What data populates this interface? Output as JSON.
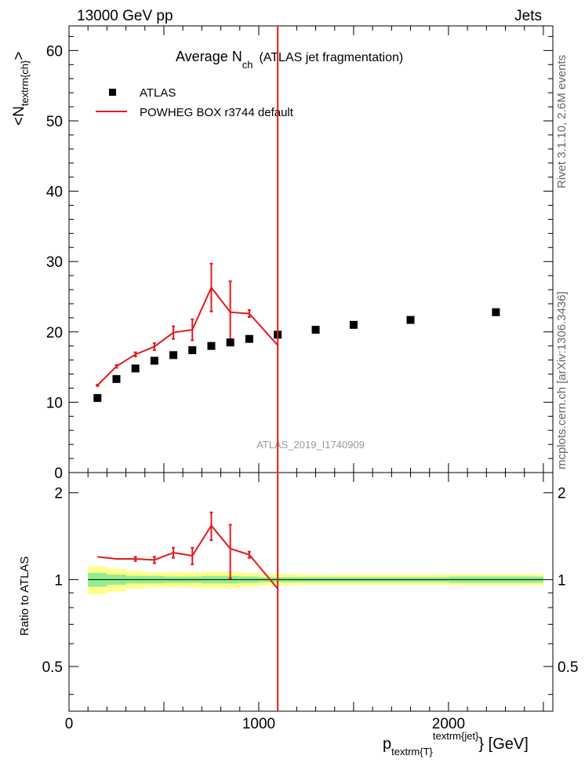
{
  "header": {
    "left": "13000 GeV pp",
    "right": "Jets"
  },
  "sidebar": {
    "rivet": "Rivet 3.1.10,  2.6M events",
    "mcplots": "mcplots.cern.ch [arXiv:1306.3436]"
  },
  "watermark": "ATLAS_2019_I1740909",
  "chart_data": {
    "type": "scatter",
    "title": {
      "main": "Average N",
      "sub": "ch",
      "rest": "(ATLAS jet fragmentation)"
    },
    "ylabel": {
      "pre": "<N",
      "sub": "textrm{ch}",
      "post": ">"
    },
    "xlabel": {
      "p": "p",
      "sub": "textrm{T}",
      "sup": "textrm{jet}",
      "unit": "} [GeV]"
    },
    "ratio_ylabel": "Ratio to ATLAS",
    "xlim": [
      0,
      2550
    ],
    "ylim": [
      0,
      63.5
    ],
    "ratio_ylim": [
      0.35,
      2.35
    ],
    "xticks": [
      "0",
      "1000",
      "2000"
    ],
    "xtick_values": [
      0,
      1000,
      2000
    ],
    "yticks": [
      "0",
      "10",
      "20",
      "30",
      "40",
      "50",
      "60"
    ],
    "ytick_values": [
      0,
      10,
      20,
      30,
      40,
      50,
      60
    ],
    "ratio_ticks": [
      "0.5",
      "1",
      "2"
    ],
    "ratio_tick_values": [
      0.5,
      1,
      2
    ],
    "vline_x": 1100,
    "legend": [
      "ATLAS",
      "POWHEG BOX r3744 default"
    ],
    "atlas": {
      "x": [
        150,
        250,
        350,
        450,
        550,
        650,
        750,
        850,
        950,
        1100,
        1300,
        1500,
        1800,
        2250
      ],
      "y": [
        10.6,
        13.3,
        14.8,
        15.9,
        16.7,
        17.4,
        18.0,
        18.5,
        19.0,
        19.6,
        20.3,
        21.0,
        21.7,
        22.8
      ]
    },
    "powheg": {
      "x": [
        150,
        250,
        350,
        450,
        550,
        650,
        750,
        850,
        950,
        1100
      ],
      "y": [
        12.4,
        15.1,
        16.8,
        17.9,
        19.9,
        20.3,
        26.3,
        22.8,
        22.6,
        18.1
      ],
      "err": [
        0.1,
        0.2,
        0.3,
        0.5,
        0.9,
        1.5,
        3.4,
        4.4,
        0.5,
        0.0
      ]
    },
    "ratio": {
      "x": [
        150,
        250,
        350,
        450,
        550,
        650,
        750,
        850,
        950,
        1100
      ],
      "y": [
        1.2,
        1.18,
        1.18,
        1.17,
        1.24,
        1.21,
        1.54,
        1.28,
        1.22,
        0.93
      ],
      "err": [
        0.0,
        0.0,
        0.02,
        0.03,
        0.05,
        0.08,
        0.17,
        0.27,
        0.03,
        0.0
      ]
    },
    "band": {
      "edges": [
        100,
        200,
        300,
        400,
        500,
        600,
        700,
        800,
        900,
        1000,
        1200,
        1400,
        1600,
        2000,
        2500
      ],
      "green": [
        0.055,
        0.04,
        0.03,
        0.03,
        0.025,
        0.025,
        0.03,
        0.03,
        0.025,
        0.02,
        0.02,
        0.02,
        0.02,
        0.025
      ],
      "yellow": [
        0.11,
        0.09,
        0.07,
        0.06,
        0.06,
        0.06,
        0.065,
        0.065,
        0.055,
        0.045,
        0.04,
        0.04,
        0.04,
        0.045
      ]
    },
    "colors": {
      "data": "#000000",
      "mc": "#e41a1c",
      "band_yellow": "#ffff8a",
      "band_green": "#90ee90"
    }
  }
}
